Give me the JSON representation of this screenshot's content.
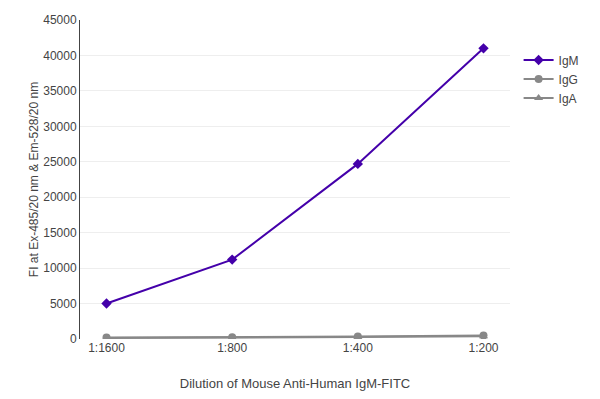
{
  "chart_data": {
    "type": "line",
    "xlabel": "Dilution of Mouse Anti-Human IgM-FITC",
    "ylabel": "FI at Ex-485/20 nm & Em-528/20 nm",
    "categories": [
      "1:1600",
      "1:800",
      "1:400",
      "1:200"
    ],
    "series": [
      {
        "name": "IgM",
        "color": "#4400aa",
        "marker": "diamond",
        "values": [
          5000,
          11200,
          24700,
          41000
        ]
      },
      {
        "name": "IgG",
        "color": "#888888",
        "marker": "circle",
        "values": [
          200,
          250,
          350,
          500
        ]
      },
      {
        "name": "IgA",
        "color": "#888888",
        "marker": "triangle",
        "values": [
          150,
          180,
          280,
          400
        ]
      }
    ],
    "ylim": [
      0,
      45000
    ],
    "yticks": [
      0,
      5000,
      10000,
      15000,
      20000,
      25000,
      30000,
      35000,
      40000,
      45000
    ],
    "grid": true,
    "legend": "right"
  }
}
